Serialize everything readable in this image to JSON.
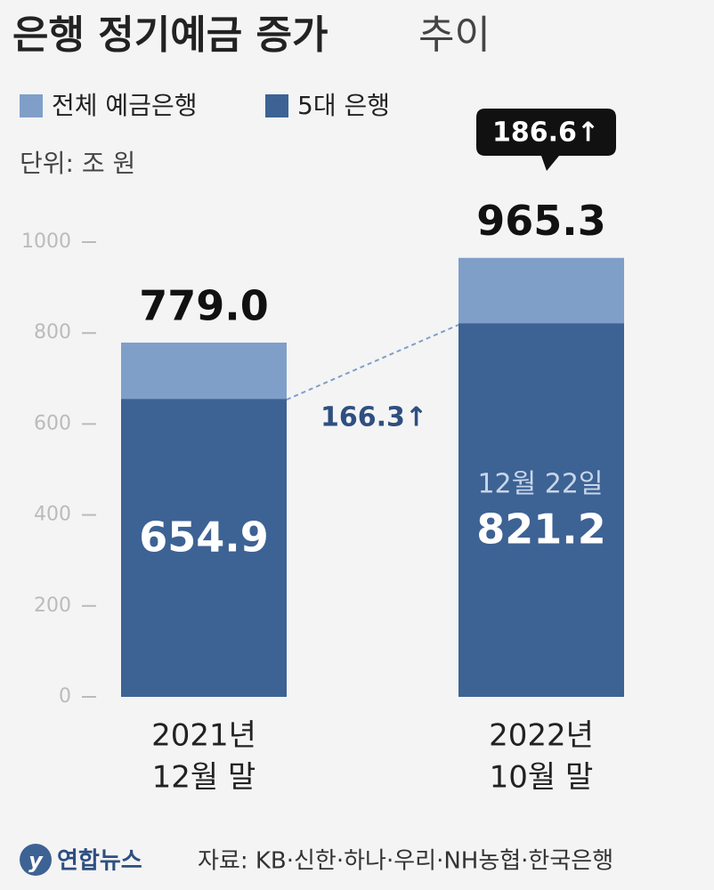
{
  "chart_data": {
    "type": "overlap-bar",
    "title": "은행 정기예금 증가",
    "title_suffix": "추이",
    "unit": "단위: 조 원",
    "categories": [
      [
        "2021년",
        "12월 말"
      ],
      [
        "2022년",
        "10월 말"
      ]
    ],
    "series": [
      {
        "name": "전체 예금은행",
        "color": "#7f9fc9",
        "values": [
          779.0,
          965.3
        ],
        "value_labels": [
          "779.0",
          "965.3"
        ]
      },
      {
        "name": "5대 은행",
        "color": "#3d6294",
        "values": [
          654.9,
          821.2
        ]
      }
    ],
    "ylim": [
      0,
      1000
    ],
    "yticks": [
      0,
      200,
      400,
      600,
      800,
      1000
    ],
    "annotations": [
      "186.6↑",
      "166.3↑",
      "12월 22일"
    ],
    "logo": "연합뉴스",
    "source": "자료: KB·신한·하나·우리·NH농협·한국은행"
  }
}
